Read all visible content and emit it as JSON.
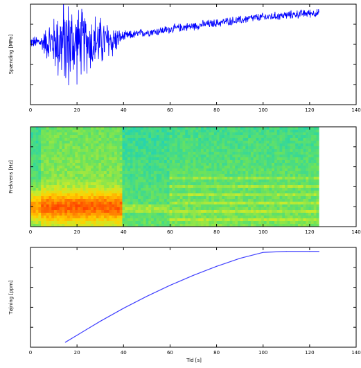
{
  "chart_data": [
    {
      "type": "line",
      "title": "",
      "xlabel": "",
      "ylabel": "Spænding [MPa]",
      "xlim": [
        0,
        140
      ],
      "x_ticks": [
        "0",
        "20",
        "40",
        "60",
        "80",
        "100",
        "120",
        "140"
      ],
      "y_ticks": [
        "",
        "",
        "",
        ""
      ],
      "y_range_relative": [
        0,
        1
      ],
      "series": [
        {
          "color": "#0000ff",
          "x": [
            0,
            5,
            8,
            10,
            12,
            14,
            16,
            18,
            20,
            22,
            25,
            28,
            30,
            33,
            36,
            38,
            40,
            45,
            50,
            55,
            60,
            65,
            70,
            75,
            80,
            85,
            90,
            95,
            100,
            105,
            110,
            115,
            120,
            124
          ],
          "center": [
            0.62,
            0.62,
            0.62,
            0.62,
            0.62,
            0.61,
            0.6,
            0.6,
            0.61,
            0.62,
            0.62,
            0.62,
            0.62,
            0.63,
            0.64,
            0.66,
            0.68,
            0.7,
            0.72,
            0.73,
            0.75,
            0.77,
            0.78,
            0.8,
            0.81,
            0.83,
            0.84,
            0.86,
            0.87,
            0.88,
            0.89,
            0.9,
            0.91,
            0.91
          ],
          "amplitude": [
            0.06,
            0.1,
            0.25,
            0.3,
            0.45,
            0.55,
            0.55,
            0.5,
            0.45,
            0.4,
            0.35,
            0.35,
            0.3,
            0.25,
            0.2,
            0.1,
            0.06,
            0.05,
            0.05,
            0.05,
            0.05,
            0.05,
            0.05,
            0.05,
            0.05,
            0.05,
            0.05,
            0.05,
            0.05,
            0.05,
            0.05,
            0.05,
            0.05,
            0.05
          ]
        }
      ]
    },
    {
      "type": "heatmap",
      "title": "",
      "xlabel": "",
      "ylabel": "Frekvens [Hz]",
      "xlim": [
        0,
        140
      ],
      "x_ticks": [
        "0",
        "20",
        "40",
        "60",
        "80",
        "100",
        "120",
        "140"
      ],
      "y_ticks": [
        "",
        "",
        "",
        ""
      ],
      "data_x_end": 124,
      "colormap": [
        "#0000ff",
        "#00c8ff",
        "#2fd6a0",
        "#6ee35a",
        "#c8ea2c",
        "#ffd200",
        "#ff8c00",
        "#ff3c00"
      ]
    },
    {
      "type": "line",
      "title": "",
      "xlabel": "Tid [s]",
      "ylabel": "Tøjning [ppm]",
      "xlim": [
        0,
        140
      ],
      "x_ticks": [
        "0",
        "20",
        "40",
        "60",
        "80",
        "100",
        "120",
        "140"
      ],
      "y_ticks": [
        "",
        "",
        "",
        ""
      ],
      "y_range_relative": [
        0,
        1
      ],
      "series": [
        {
          "color": "#4040ff",
          "x": [
            15,
            20,
            30,
            40,
            50,
            60,
            70,
            80,
            90,
            100,
            110,
            120,
            124
          ],
          "y": [
            0.05,
            0.12,
            0.26,
            0.39,
            0.51,
            0.62,
            0.72,
            0.81,
            0.89,
            0.95,
            0.96,
            0.96,
            0.96
          ]
        }
      ]
    }
  ]
}
